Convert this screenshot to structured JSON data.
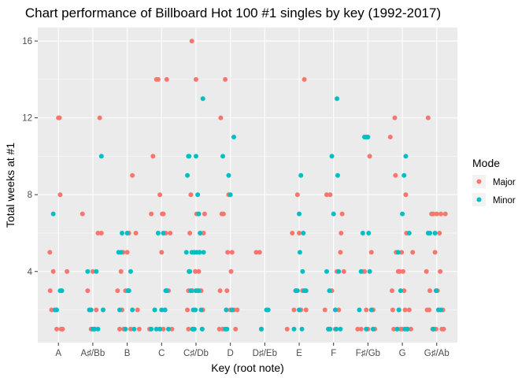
{
  "chart_data": {
    "type": "scatter",
    "title": "Chart performance of Billboard Hot 100 #1 singles by key (1992-2017)",
    "xlabel": "Key (root note)",
    "ylabel": "Total weeks at #1",
    "categories": [
      "A",
      "A♯/Bb",
      "B",
      "C",
      "C♯/Db",
      "D",
      "D♯/Eb",
      "E",
      "F",
      "F♯/Gb",
      "G",
      "G♯/Ab"
    ],
    "y_ticks": [
      4,
      8,
      12,
      16
    ],
    "ylim": [
      0.3,
      16.7
    ],
    "grid": true,
    "legend": {
      "title": "Mode",
      "position": "right",
      "entries": [
        {
          "name": "Major",
          "color": "#F8766D"
        },
        {
          "name": "Minor",
          "color": "#00BFC4"
        }
      ]
    },
    "points_note": "x = category index (0 = A ... 11 = G♯/Ab) plus horizontal jitter; y = total weeks at #1",
    "series": [
      {
        "name": "Major",
        "color": "#F8766D",
        "points": [
          [
            -0.25,
            5
          ],
          [
            -0.24,
            3
          ],
          [
            -0.2,
            2
          ],
          [
            -0.15,
            4
          ],
          [
            -0.1,
            2
          ],
          [
            -0.05,
            1
          ],
          [
            0.0,
            12
          ],
          [
            0.02,
            12
          ],
          [
            0.03,
            12
          ],
          [
            0.05,
            8
          ],
          [
            0.08,
            1
          ],
          [
            0.12,
            1
          ],
          [
            0.25,
            4
          ],
          [
            0.1,
            1
          ],
          [
            0.7,
            7
          ],
          [
            0.85,
            3
          ],
          [
            1.0,
            4
          ],
          [
            1.05,
            1
          ],
          [
            1.1,
            2
          ],
          [
            1.15,
            6
          ],
          [
            1.2,
            12
          ],
          [
            1.25,
            6
          ],
          [
            1.3,
            2
          ],
          [
            0.95,
            1
          ],
          [
            1.72,
            3
          ],
          [
            1.78,
            1
          ],
          [
            1.85,
            2
          ],
          [
            1.88,
            5
          ],
          [
            1.9,
            1
          ],
          [
            1.95,
            3
          ],
          [
            2.0,
            5
          ],
          [
            2.05,
            6
          ],
          [
            2.1,
            1
          ],
          [
            2.15,
            9
          ],
          [
            2.3,
            2
          ],
          [
            2.35,
            1
          ],
          [
            2.25,
            6
          ],
          [
            1.82,
            4
          ],
          [
            2.65,
            1
          ],
          [
            2.7,
            7
          ],
          [
            2.75,
            10
          ],
          [
            2.8,
            2
          ],
          [
            2.85,
            14
          ],
          [
            2.9,
            14
          ],
          [
            2.95,
            8
          ],
          [
            3.0,
            5
          ],
          [
            3.02,
            7
          ],
          [
            3.05,
            7
          ],
          [
            3.1,
            2
          ],
          [
            3.12,
            6
          ],
          [
            3.15,
            14
          ],
          [
            3.2,
            3
          ],
          [
            3.25,
            6
          ],
          [
            3.3,
            1
          ],
          [
            2.68,
            1
          ],
          [
            2.95,
            1
          ],
          [
            3.05,
            1
          ],
          [
            3.75,
            2
          ],
          [
            3.78,
            3
          ],
          [
            3.8,
            4
          ],
          [
            3.82,
            6
          ],
          [
            3.85,
            8
          ],
          [
            3.88,
            16
          ],
          [
            3.9,
            3
          ],
          [
            3.92,
            1
          ],
          [
            3.95,
            5
          ],
          [
            4.0,
            14
          ],
          [
            4.02,
            7
          ],
          [
            4.05,
            3
          ],
          [
            4.08,
            4
          ],
          [
            4.1,
            5
          ],
          [
            4.12,
            6
          ],
          [
            4.15,
            3
          ],
          [
            4.18,
            1
          ],
          [
            4.2,
            2
          ],
          [
            4.25,
            7
          ],
          [
            3.78,
            1
          ],
          [
            3.98,
            4
          ],
          [
            4.22,
            6
          ],
          [
            4.68,
            1
          ],
          [
            4.7,
            3
          ],
          [
            4.72,
            12
          ],
          [
            4.75,
            7
          ],
          [
            4.8,
            7
          ],
          [
            4.85,
            14
          ],
          [
            4.88,
            2
          ],
          [
            4.9,
            3
          ],
          [
            4.92,
            5
          ],
          [
            4.95,
            8
          ],
          [
            5.0,
            2
          ],
          [
            5.05,
            5
          ],
          [
            5.1,
            2
          ],
          [
            5.15,
            1
          ],
          [
            5.2,
            2
          ],
          [
            4.78,
            1
          ],
          [
            5.02,
            4
          ],
          [
            5.75,
            5
          ],
          [
            5.85,
            5
          ],
          [
            5.9,
            1
          ],
          [
            6.65,
            1
          ],
          [
            6.8,
            6
          ],
          [
            6.85,
            2
          ],
          [
            6.9,
            3
          ],
          [
            6.95,
            8
          ],
          [
            7.0,
            6
          ],
          [
            7.05,
            2
          ],
          [
            7.1,
            3
          ],
          [
            7.15,
            14
          ],
          [
            7.2,
            2
          ],
          [
            7.75,
            2
          ],
          [
            7.8,
            8
          ],
          [
            7.85,
            1
          ],
          [
            7.9,
            8
          ],
          [
            7.95,
            3
          ],
          [
            8.05,
            1
          ],
          [
            8.1,
            4
          ],
          [
            8.15,
            2
          ],
          [
            8.2,
            5
          ],
          [
            8.22,
            6
          ],
          [
            8.25,
            7
          ],
          [
            8.3,
            4
          ],
          [
            8.7,
            1
          ],
          [
            8.8,
            1
          ],
          [
            8.85,
            4
          ],
          [
            8.9,
            4
          ],
          [
            8.95,
            2
          ],
          [
            9.0,
            1
          ],
          [
            9.05,
            10
          ],
          [
            9.1,
            5
          ],
          [
            9.15,
            2
          ],
          [
            9.2,
            1
          ],
          [
            9.65,
            11
          ],
          [
            9.7,
            3
          ],
          [
            9.72,
            2
          ],
          [
            9.75,
            1
          ],
          [
            9.78,
            12
          ],
          [
            9.8,
            9
          ],
          [
            9.82,
            5
          ],
          [
            9.85,
            1
          ],
          [
            9.88,
            4
          ],
          [
            9.9,
            2
          ],
          [
            9.92,
            4
          ],
          [
            9.95,
            1
          ],
          [
            9.98,
            5
          ],
          [
            10.0,
            1
          ],
          [
            10.02,
            4
          ],
          [
            10.05,
            3
          ],
          [
            10.08,
            2
          ],
          [
            10.1,
            8
          ],
          [
            10.12,
            6
          ],
          [
            10.15,
            1
          ],
          [
            10.2,
            2
          ],
          [
            10.25,
            1
          ],
          [
            10.3,
            5
          ],
          [
            10.7,
            4
          ],
          [
            10.75,
            12
          ],
          [
            10.78,
            2
          ],
          [
            10.8,
            3
          ],
          [
            10.85,
            7
          ],
          [
            10.88,
            1
          ],
          [
            10.9,
            7
          ],
          [
            10.92,
            1
          ],
          [
            10.95,
            5
          ],
          [
            11.0,
            7
          ],
          [
            11.02,
            3
          ],
          [
            11.05,
            2
          ],
          [
            11.08,
            6
          ],
          [
            11.1,
            4
          ],
          [
            11.12,
            7
          ],
          [
            11.15,
            1
          ],
          [
            11.18,
            2
          ],
          [
            11.2,
            1
          ],
          [
            11.25,
            7
          ],
          [
            10.72,
            2
          ],
          [
            10.98,
            1
          ]
        ]
      },
      {
        "name": "Minor",
        "color": "#00BFC4",
        "points": [
          [
            -0.15,
            7
          ],
          [
            -0.1,
            2
          ],
          [
            0.05,
            3
          ],
          [
            0.1,
            3
          ],
          [
            -0.05,
            2
          ],
          [
            0.85,
            4
          ],
          [
            0.9,
            2
          ],
          [
            0.95,
            2
          ],
          [
            1.0,
            1
          ],
          [
            1.05,
            1
          ],
          [
            1.1,
            4
          ],
          [
            1.15,
            1
          ],
          [
            1.25,
            10
          ],
          [
            1.3,
            2
          ],
          [
            1.75,
            5
          ],
          [
            1.78,
            2
          ],
          [
            1.82,
            5
          ],
          [
            1.85,
            6
          ],
          [
            2.0,
            6
          ],
          [
            2.05,
            3
          ],
          [
            2.1,
            4
          ],
          [
            2.15,
            2
          ],
          [
            2.2,
            1
          ],
          [
            1.95,
            1
          ],
          [
            2.02,
            3
          ],
          [
            2.7,
            1
          ],
          [
            2.8,
            2
          ],
          [
            2.85,
            1
          ],
          [
            2.9,
            6
          ],
          [
            3.0,
            2
          ],
          [
            3.05,
            6
          ],
          [
            3.1,
            2
          ],
          [
            3.15,
            3
          ],
          [
            3.2,
            1
          ],
          [
            3.12,
            3
          ],
          [
            2.95,
            1
          ],
          [
            3.72,
            5
          ],
          [
            3.75,
            9
          ],
          [
            3.78,
            10
          ],
          [
            3.8,
            10
          ],
          [
            3.82,
            4
          ],
          [
            3.85,
            3
          ],
          [
            3.88,
            5
          ],
          [
            3.9,
            1
          ],
          [
            3.92,
            2
          ],
          [
            3.95,
            5
          ],
          [
            3.98,
            2
          ],
          [
            4.0,
            10
          ],
          [
            4.02,
            5
          ],
          [
            4.05,
            8
          ],
          [
            4.08,
            3
          ],
          [
            4.1,
            5
          ],
          [
            4.12,
            6
          ],
          [
            4.15,
            2
          ],
          [
            4.18,
            1
          ],
          [
            4.2,
            13
          ],
          [
            4.22,
            5
          ],
          [
            3.8,
            4
          ],
          [
            4.0,
            3
          ],
          [
            4.08,
            7
          ],
          [
            3.95,
            1
          ],
          [
            4.78,
            10
          ],
          [
            4.85,
            1
          ],
          [
            4.9,
            1
          ],
          [
            4.95,
            9
          ],
          [
            5.0,
            8
          ],
          [
            5.05,
            2
          ],
          [
            5.1,
            11
          ],
          [
            4.88,
            2
          ],
          [
            5.9,
            1
          ],
          [
            6.05,
            2
          ],
          [
            6.1,
            2
          ],
          [
            6.85,
            1
          ],
          [
            6.9,
            3
          ],
          [
            6.95,
            3
          ],
          [
            7.0,
            7
          ],
          [
            7.02,
            5
          ],
          [
            7.05,
            9
          ],
          [
            7.08,
            1
          ],
          [
            7.1,
            4
          ],
          [
            7.12,
            6
          ],
          [
            7.15,
            3
          ],
          [
            7.2,
            3
          ],
          [
            7.0,
            2
          ],
          [
            7.8,
            4
          ],
          [
            7.85,
            1
          ],
          [
            7.9,
            1
          ],
          [
            7.95,
            10
          ],
          [
            8.0,
            7
          ],
          [
            8.05,
            2
          ],
          [
            8.1,
            13
          ],
          [
            8.12,
            9
          ],
          [
            8.15,
            4
          ],
          [
            8.2,
            1
          ],
          [
            7.88,
            3
          ],
          [
            8.08,
            1
          ],
          [
            8.75,
            2
          ],
          [
            8.8,
            4
          ],
          [
            8.85,
            6
          ],
          [
            8.9,
            11
          ],
          [
            8.95,
            11
          ],
          [
            9.0,
            11
          ],
          [
            9.02,
            6
          ],
          [
            9.05,
            4
          ],
          [
            9.1,
            2
          ],
          [
            9.15,
            1
          ],
          [
            8.95,
            1
          ],
          [
            9.85,
            1
          ],
          [
            9.9,
            2
          ],
          [
            9.95,
            3
          ],
          [
            10.0,
            7
          ],
          [
            10.05,
            9
          ],
          [
            10.1,
            10
          ],
          [
            10.15,
            1
          ],
          [
            10.2,
            6
          ],
          [
            10.08,
            1
          ],
          [
            9.88,
            5
          ],
          [
            10.75,
            6
          ],
          [
            10.8,
            6
          ],
          [
            10.9,
            1
          ],
          [
            10.95,
            6
          ],
          [
            11.05,
            2
          ],
          [
            11.12,
            2
          ],
          [
            10.98,
            3
          ]
        ]
      }
    ]
  }
}
